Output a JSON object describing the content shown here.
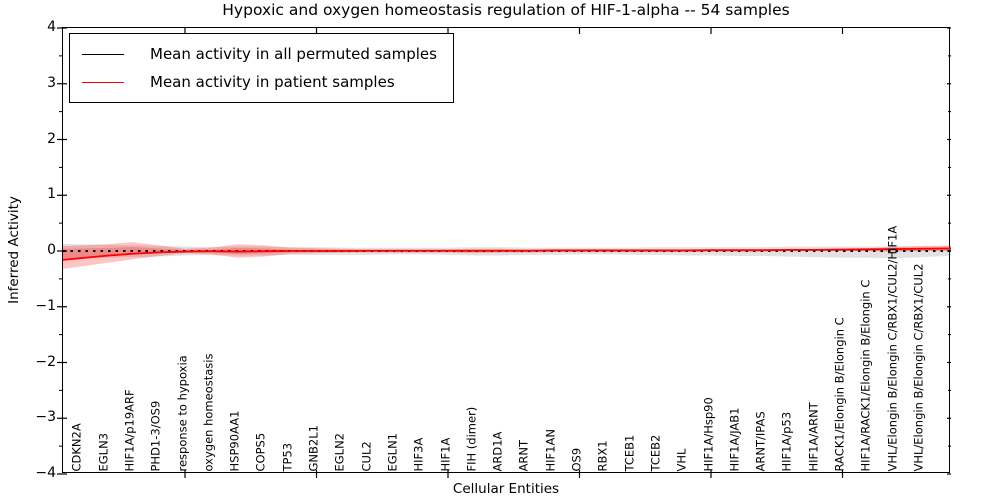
{
  "title": "Hypoxic and oxygen homeostasis regulation of HIF-1-alpha -- 54 samples",
  "axes": {
    "x_label": "Cellular Entities",
    "y_label": "Inferred Activity",
    "y_tick_labels": [
      "4",
      "3",
      "2",
      "1",
      "0",
      "−1",
      "−2",
      "−3",
      "−4"
    ],
    "y_tick_values": [
      4,
      3,
      2,
      1,
      0,
      -1,
      -2,
      -3,
      -4
    ]
  },
  "legend": {
    "entries": [
      {
        "label": "Mean activity in all permuted samples",
        "color": "#000000"
      },
      {
        "label": "Mean activity in patient samples",
        "color": "#ff0000"
      }
    ]
  },
  "chart_data": {
    "type": "line",
    "title": "Hypoxic and oxygen homeostasis regulation of HIF-1-alpha -- 54 samples",
    "xlabel": "Cellular Entities",
    "ylabel": "Inferred Activity",
    "ylim": [
      -4,
      4
    ],
    "x_major_tick_values": [
      5,
      10,
      15,
      20,
      25,
      30
    ],
    "grid": false,
    "legend_position": "upper left",
    "sample_count": "54 samples",
    "categories": [
      "CDKN2A",
      "EGLN3",
      "HIF1A/p19ARF",
      "PHD1-3/OS9",
      "response to hypoxia",
      "oxygen homeostasis",
      "HSP90AA1",
      "COPS5",
      "TP53",
      "GNB2L1",
      "EGLN2",
      "CUL2",
      "EGLN1",
      "HIF3A",
      "HIF1A",
      "FIH (dimer)",
      "ARD1A",
      "ARNT",
      "HIF1AN",
      "OS9",
      "RBX1",
      "TCEB1",
      "TCEB2",
      "VHL",
      "HIF1A/Hsp90",
      "HIF1A/JAB1",
      "ARNT/IPAS",
      "HIF1A/p53",
      "HIF1A/ARNT",
      "RACK1/Elongin B/Elongin C",
      "HIF1A/RACK1/Elongin B/Elongin C",
      "VHL/Elongin B/Elongin C/RBX1/CUL2/HIF1A",
      "VHL/Elongin B/Elongin C/RBX1/CUL2"
    ],
    "series": [
      {
        "name": "Mean activity in all permuted samples",
        "color": "#000000",
        "line_style": "dashed",
        "values": [
          0,
          0,
          0,
          0,
          0,
          0,
          0,
          0,
          0,
          0,
          0,
          0,
          0,
          0,
          0,
          0,
          0,
          0,
          0,
          0,
          0,
          0,
          0,
          0,
          0,
          0,
          0,
          0,
          0,
          0,
          0,
          0,
          0
        ],
        "band_lo": [
          -0.13,
          -0.12,
          -0.11,
          -0.1,
          -0.08,
          -0.07,
          -0.08,
          -0.08,
          -0.07,
          -0.07,
          -0.07,
          -0.07,
          -0.06,
          -0.06,
          -0.07,
          -0.08,
          -0.08,
          -0.07,
          -0.07,
          -0.06,
          -0.06,
          -0.07,
          -0.07,
          -0.08,
          -0.08,
          -0.09,
          -0.09,
          -0.1,
          -0.11,
          -0.12,
          -0.12,
          -0.13,
          -0.11
        ],
        "band_hi": [
          0.12,
          0.11,
          0.1,
          0.09,
          0.08,
          0.07,
          0.08,
          0.08,
          0.07,
          0.07,
          0.06,
          0.06,
          0.06,
          0.06,
          0.06,
          0.07,
          0.07,
          0.06,
          0.06,
          0.06,
          0.06,
          0.06,
          0.07,
          0.07,
          0.07,
          0.07,
          0.07,
          0.08,
          0.08,
          0.08,
          0.08,
          0.08,
          0.08
        ],
        "band_color": "rgba(110,110,110,0.20)"
      },
      {
        "name": "Mean activity in patient samples",
        "color": "#ff0000",
        "line_style": "solid",
        "values": [
          -0.13,
          -0.085,
          -0.05,
          -0.025,
          -0.01,
          -0.005,
          -0.01,
          -0.005,
          0,
          0,
          0,
          0.005,
          0.005,
          0.005,
          0.005,
          0.005,
          0.005,
          0.005,
          0.01,
          0.01,
          0.01,
          0.01,
          0.01,
          0.01,
          0.015,
          0.015,
          0.015,
          0.02,
          0.02,
          0.025,
          0.03,
          0.035,
          0.04
        ],
        "band_lo": [
          -0.28,
          -0.215,
          -0.15,
          -0.09,
          -0.04,
          -0.06,
          -0.12,
          -0.1,
          -0.05,
          -0.04,
          -0.03,
          -0.03,
          -0.03,
          -0.03,
          -0.03,
          -0.04,
          -0.03,
          -0.03,
          -0.02,
          -0.02,
          -0.02,
          -0.02,
          -0.02,
          -0.02,
          -0.01,
          -0.01,
          -0.01,
          0,
          0,
          0,
          0,
          -0.01,
          0
        ],
        "band_hi": [
          0.1,
          0.12,
          0.16,
          0.1,
          0.04,
          0.06,
          0.12,
          0.1,
          0.06,
          0.05,
          0.04,
          0.03,
          0.03,
          0.03,
          0.03,
          0.04,
          0.04,
          0.03,
          0.03,
          0.03,
          0.03,
          0.03,
          0.03,
          0.02,
          0.03,
          0.03,
          0.03,
          0.04,
          0.04,
          0.05,
          0.05,
          0.08,
          0.09
        ],
        "band_color": "rgba(255,30,30,0.26)"
      }
    ]
  }
}
